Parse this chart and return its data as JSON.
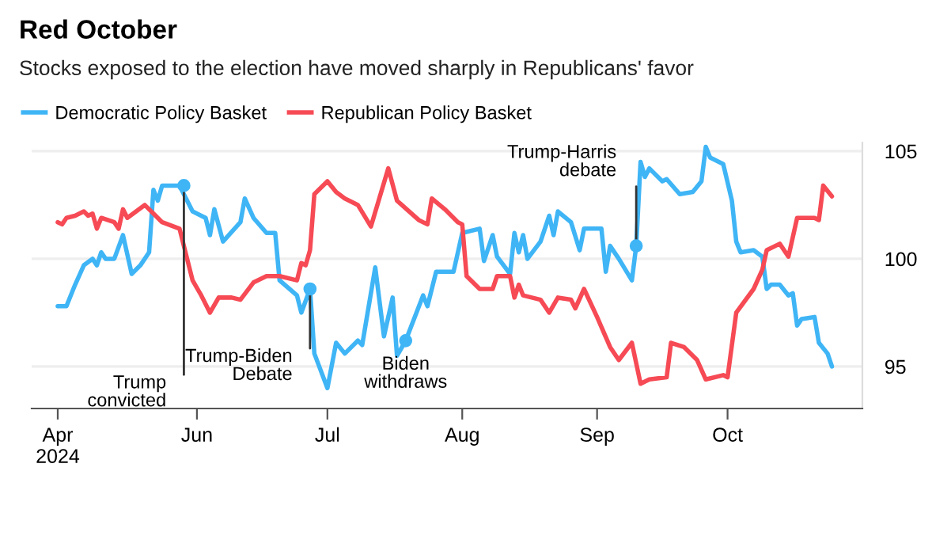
{
  "chart_data": {
    "type": "line",
    "title": "Red October",
    "subtitle": "Stocks exposed to the election have moved sharply in Republicans' favor",
    "xlim": [
      "2024-04-24",
      "2024-11-01"
    ],
    "ylim": [
      93.05,
      105.4
    ],
    "yticks": [
      95,
      100,
      105
    ],
    "xticks": [
      {
        "value": "2024-04-30",
        "label": "Apr\n2024"
      },
      {
        "value": "2024-06-01",
        "label": "Jun"
      },
      {
        "value": "2024-07-01",
        "label": "Jul"
      },
      {
        "value": "2024-08-01",
        "label": "Aug"
      },
      {
        "value": "2024-09-01",
        "label": "Sep"
      },
      {
        "value": "2024-10-01",
        "label": "Oct"
      }
    ],
    "grid": "y",
    "legend": "top left",
    "line_style": "solid",
    "series": [
      {
        "name": "Democratic Policy Basket",
        "color": "#3fb5f6",
        "x": [
          "2024-04-30",
          "2024-05-02",
          "2024-05-04",
          "2024-05-06",
          "2024-05-08",
          "2024-05-09",
          "2024-05-10",
          "2024-05-11",
          "2024-05-13",
          "2024-05-15",
          "2024-05-17",
          "2024-05-19",
          "2024-05-21",
          "2024-05-22",
          "2024-05-23",
          "2024-05-24",
          "2024-05-28",
          "2024-05-31",
          "2024-06-03",
          "2024-06-04",
          "2024-06-05",
          "2024-06-07",
          "2024-06-11",
          "2024-06-12",
          "2024-06-14",
          "2024-06-17",
          "2024-06-19",
          "2024-06-20",
          "2024-06-24",
          "2024-06-25",
          "2024-06-27",
          "2024-06-28",
          "2024-07-01",
          "2024-07-03",
          "2024-07-05",
          "2024-07-08",
          "2024-07-09",
          "2024-07-12",
          "2024-07-14",
          "2024-07-16",
          "2024-07-17",
          "2024-07-19",
          "2024-07-23",
          "2024-07-24",
          "2024-07-26",
          "2024-07-30",
          "2024-08-01",
          "2024-08-05",
          "2024-08-06",
          "2024-08-08",
          "2024-08-09",
          "2024-08-12",
          "2024-08-13",
          "2024-08-14",
          "2024-08-15",
          "2024-08-16",
          "2024-08-19",
          "2024-08-21",
          "2024-08-22",
          "2024-08-23",
          "2024-08-26",
          "2024-08-28",
          "2024-08-29",
          "2024-09-02",
          "2024-09-03",
          "2024-09-04",
          "2024-09-06",
          "2024-09-09",
          "2024-09-10",
          "2024-09-11",
          "2024-09-12",
          "2024-09-13",
          "2024-09-16",
          "2024-09-17",
          "2024-09-20",
          "2024-09-23",
          "2024-09-25",
          "2024-09-26",
          "2024-09-27",
          "2024-09-30",
          "2024-10-02",
          "2024-10-03",
          "2024-10-04",
          "2024-10-07",
          "2024-10-09",
          "2024-10-10",
          "2024-10-11",
          "2024-10-13",
          "2024-10-15",
          "2024-10-16",
          "2024-10-17",
          "2024-10-18",
          "2024-10-21",
          "2024-10-22",
          "2024-10-24",
          "2024-10-25"
        ],
        "values": [
          97.8,
          97.8,
          98.8,
          99.7,
          100.0,
          99.7,
          100.3,
          100.0,
          100.0,
          101.1,
          99.3,
          99.7,
          100.3,
          103.2,
          102.7,
          103.4,
          103.4,
          102.2,
          101.9,
          101.1,
          102.3,
          100.8,
          101.7,
          102.8,
          101.9,
          101.2,
          101.2,
          99.0,
          98.3,
          97.5,
          98.6,
          95.6,
          94.0,
          96.1,
          95.6,
          96.2,
          96.0,
          99.6,
          96.4,
          98.2,
          95.5,
          96.2,
          98.3,
          97.8,
          99.4,
          99.4,
          101.2,
          101.4,
          99.9,
          101.1,
          100.1,
          99.3,
          101.2,
          100.3,
          101.1,
          100.0,
          100.8,
          102.0,
          101.1,
          102.2,
          101.7,
          100.4,
          101.4,
          101.4,
          99.4,
          100.6,
          100.0,
          99.0,
          100.6,
          104.5,
          103.8,
          104.2,
          103.6,
          103.7,
          103.0,
          103.1,
          103.6,
          105.2,
          104.7,
          104.4,
          102.7,
          100.8,
          100.3,
          100.4,
          100.1,
          98.6,
          98.8,
          98.8,
          98.3,
          98.4,
          96.9,
          97.2,
          97.3,
          96.1,
          95.6,
          95.0
        ]
      },
      {
        "name": "Republican Policy Basket",
        "color": "#f64a55",
        "x": [
          "2024-04-30",
          "2024-05-01",
          "2024-05-02",
          "2024-05-04",
          "2024-05-06",
          "2024-05-07",
          "2024-05-08",
          "2024-05-09",
          "2024-05-10",
          "2024-05-13",
          "2024-05-14",
          "2024-05-15",
          "2024-05-16",
          "2024-05-20",
          "2024-05-22",
          "2024-05-24",
          "2024-05-28",
          "2024-05-31",
          "2024-06-02",
          "2024-06-04",
          "2024-06-06",
          "2024-06-09",
          "2024-06-11",
          "2024-06-14",
          "2024-06-17",
          "2024-06-20",
          "2024-06-24",
          "2024-06-25",
          "2024-06-26",
          "2024-06-27",
          "2024-06-28",
          "2024-07-01",
          "2024-07-03",
          "2024-07-05",
          "2024-07-08",
          "2024-07-11",
          "2024-07-15",
          "2024-07-17",
          "2024-07-22",
          "2024-07-24",
          "2024-07-25",
          "2024-07-28",
          "2024-07-31",
          "2024-08-01",
          "2024-08-02",
          "2024-08-05",
          "2024-08-08",
          "2024-08-09",
          "2024-08-12",
          "2024-08-13",
          "2024-08-14",
          "2024-08-15",
          "2024-08-19",
          "2024-08-21",
          "2024-08-23",
          "2024-08-26",
          "2024-08-27",
          "2024-08-29",
          "2024-09-01",
          "2024-09-04",
          "2024-09-06",
          "2024-09-09",
          "2024-09-11",
          "2024-09-13",
          "2024-09-17",
          "2024-09-18",
          "2024-09-21",
          "2024-09-24",
          "2024-09-26",
          "2024-09-30",
          "2024-10-01",
          "2024-10-03",
          "2024-10-07",
          "2024-10-09",
          "2024-10-10",
          "2024-10-13",
          "2024-10-15",
          "2024-10-17",
          "2024-10-21",
          "2024-10-22",
          "2024-10-23",
          "2024-10-25"
        ],
        "values": [
          101.7,
          101.6,
          101.9,
          102.0,
          102.2,
          102.0,
          102.1,
          101.4,
          101.9,
          101.7,
          101.4,
          102.3,
          101.9,
          102.5,
          102.1,
          101.7,
          101.4,
          99.0,
          98.3,
          97.5,
          98.2,
          98.2,
          98.1,
          98.9,
          99.2,
          99.2,
          99.0,
          99.8,
          99.7,
          100.4,
          103.0,
          103.6,
          103.1,
          102.8,
          102.5,
          101.5,
          104.2,
          102.7,
          101.8,
          101.6,
          102.8,
          102.3,
          101.7,
          101.6,
          99.2,
          98.6,
          98.6,
          99.2,
          99.2,
          98.2,
          98.8,
          98.3,
          98.1,
          97.5,
          98.2,
          98.1,
          97.7,
          98.6,
          97.3,
          95.9,
          95.3,
          96.1,
          94.2,
          94.4,
          94.5,
          96.1,
          95.9,
          95.3,
          94.4,
          94.6,
          94.5,
          97.5,
          98.6,
          99.5,
          100.4,
          100.7,
          100.1,
          101.9,
          101.9,
          101.8,
          103.4,
          102.9
        ]
      }
    ],
    "annotations": [
      {
        "text": "Trump\nconvicted",
        "x": "2024-05-29",
        "y": 103.4
      },
      {
        "text": "Trump-Biden\nDebate",
        "x": "2024-06-27",
        "y": 98.6
      },
      {
        "text": "Biden\nwithdraws",
        "x": "2024-07-19",
        "y": 96.2
      },
      {
        "text": "Trump-Harris\ndebate",
        "x": "2024-09-10",
        "y": 100.6
      }
    ]
  }
}
